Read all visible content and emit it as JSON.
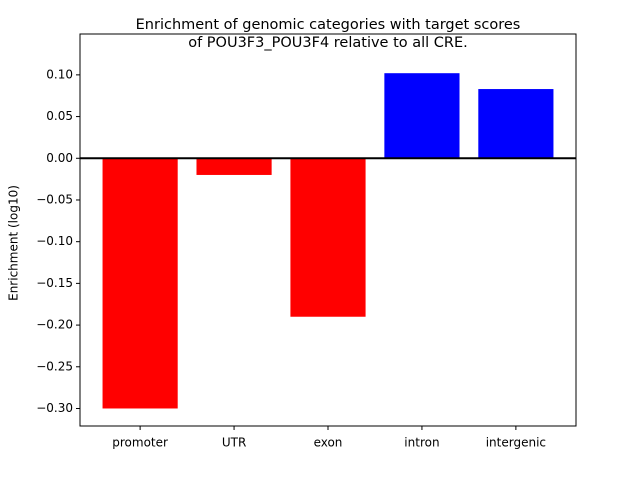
{
  "chart_data": {
    "type": "bar",
    "title": [
      "Enrichment of genomic categories with target scores",
      "of POU3F3_POU3F4 relative to all CRE."
    ],
    "y_label": "Enrichment (log10)",
    "categories": [
      "promoter",
      "UTR",
      "exon",
      "intron",
      "intergenic"
    ],
    "values": [
      -0.3,
      -0.02,
      -0.19,
      0.102,
      0.083
    ],
    "colors": [
      "#ff0000",
      "#ff0000",
      "#ff0000",
      "#0000ff",
      "#0000ff"
    ],
    "ylim": [
      -0.321,
      0.149
    ],
    "yticks": [
      {
        "value": -0.3,
        "label": "−0.30"
      },
      {
        "value": -0.25,
        "label": "−0.25"
      },
      {
        "value": -0.2,
        "label": "−0.20"
      },
      {
        "value": -0.15,
        "label": "−0.15"
      },
      {
        "value": -0.1,
        "label": "−0.10"
      },
      {
        "value": -0.05,
        "label": "−0.05"
      },
      {
        "value": 0,
        "label": "0.00"
      },
      {
        "value": 0.05,
        "label": "0.05"
      },
      {
        "value": 0.1,
        "label": "0.10"
      }
    ],
    "grid": false
  }
}
